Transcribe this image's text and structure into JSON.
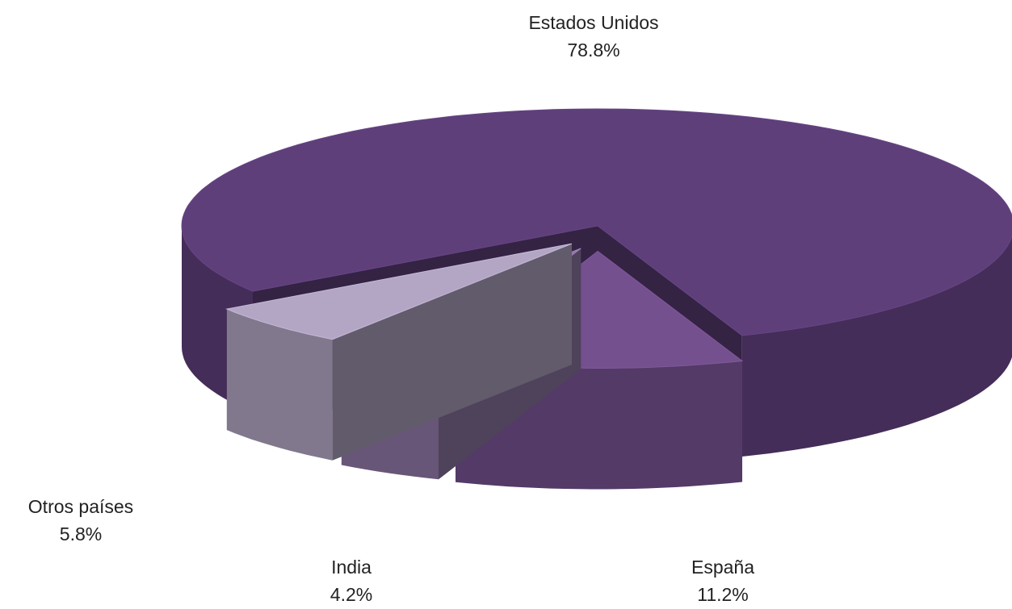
{
  "chart_data": {
    "type": "pie",
    "categories": [
      "Estados Unidos",
      "España",
      "India",
      "Otros países"
    ],
    "values": [
      78.8,
      11.2,
      4.2,
      5.8
    ],
    "value_labels": [
      "78.8%",
      "11.2%",
      "4.2%",
      "5.8%"
    ],
    "colors": [
      "#5e3f7a",
      "#74508f",
      "#9078a6",
      "#b3a6c4"
    ]
  }
}
